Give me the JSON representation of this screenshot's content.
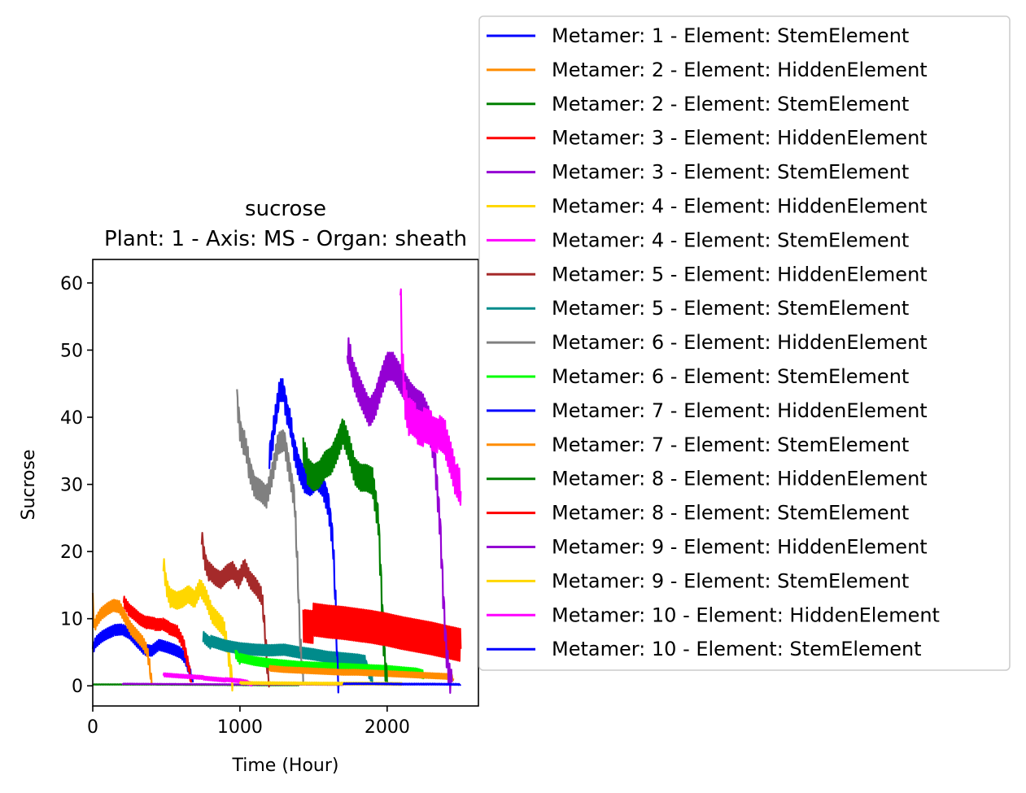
{
  "chart_data": {
    "type": "line",
    "title": "sucrose",
    "subtitle": "Plant: 1 - Axis: MS - Organ: sheath",
    "xlabel": "Time (Hour)",
    "ylabel": "Sucrose",
    "xlim": [
      0,
      2620
    ],
    "ylim": [
      -3,
      63.5
    ],
    "xticks": [
      0,
      1000,
      2000
    ],
    "yticks": [
      0,
      10,
      20,
      30,
      40,
      50,
      60
    ],
    "grid": false,
    "legend_position": "outside-right",
    "series": [
      {
        "name": "Metamer: 1 - Element: StemElement",
        "color": "#0000ff",
        "amp": 0.9,
        "x": [
          0,
          20,
          60,
          100,
          150,
          200,
          250,
          300,
          350,
          400,
          450,
          500,
          550,
          600,
          630,
          660,
          680
        ],
        "y": [
          5.5,
          6.5,
          7.3,
          7.8,
          8.3,
          8.4,
          7.8,
          6.6,
          5.4,
          5.2,
          6.1,
          5.8,
          5.4,
          4.9,
          4.0,
          2.0,
          0.5
        ]
      },
      {
        "name": "Metamer: 2 - Element: HiddenElement",
        "color": "#ff8c00",
        "amp": 1.0,
        "x": [
          0,
          10,
          30,
          60,
          100,
          140,
          180,
          220,
          260,
          300,
          340,
          370,
          385,
          400
        ],
        "y": [
          13,
          8.8,
          9.8,
          10.8,
          11.5,
          12.0,
          11.8,
          10.2,
          8.5,
          7.5,
          6.5,
          5.2,
          3.0,
          0.3
        ]
      },
      {
        "name": "Metamer: 2 - Element: StemElement",
        "color": "#008000",
        "amp": 0.05,
        "x": [
          0,
          400,
          800,
          1200,
          1400
        ],
        "y": [
          0.2,
          0.2,
          0.15,
          0.1,
          0.1
        ]
      },
      {
        "name": "Metamer: 3 - Element: HiddenElement",
        "color": "#ff0000",
        "amp": 1.0,
        "x": [
          210,
          240,
          280,
          320,
          370,
          420,
          470,
          520,
          570,
          620,
          650,
          670
        ],
        "y": [
          12.5,
          11.5,
          10.8,
          10.0,
          9.4,
          9.2,
          9.2,
          8.6,
          8.2,
          6.0,
          3.0,
          0.5
        ]
      },
      {
        "name": "Metamer: 3 - Element: StemElement",
        "color": "#9400d3",
        "amp": 0.05,
        "x": [
          200,
          600,
          1000,
          1400,
          1700
        ],
        "y": [
          0.3,
          0.25,
          0.2,
          0.2,
          0.15
        ]
      },
      {
        "name": "Metamer: 4 - Element: HiddenElement",
        "color": "#ffd700",
        "amp": 1.5,
        "x": [
          480,
          500,
          530,
          570,
          610,
          650,
          690,
          730,
          770,
          810,
          850,
          890,
          920,
          940,
          950
        ],
        "y": [
          18.5,
          15.0,
          13.0,
          12.5,
          12.8,
          13.5,
          12.7,
          14.5,
          13.0,
          10.5,
          9.5,
          8.5,
          5.0,
          2.0,
          0.4
        ]
      },
      {
        "name": "Metamer: 4 - Element: StemElement",
        "color": "#ff00ff",
        "amp": 0.3,
        "x": [
          480,
          600,
          750,
          900,
          1000,
          1050,
          1080
        ],
        "y": [
          1.6,
          1.4,
          1.2,
          0.9,
          0.7,
          0.5,
          0.3
        ]
      },
      {
        "name": "Metamer: 5 - Element: HiddenElement",
        "color": "#a52a2a",
        "amp": 1.5,
        "x": [
          740,
          760,
          790,
          830,
          870,
          910,
          950,
          990,
          1030,
          1070,
          1110,
          1150,
          1170,
          1185,
          1200
        ],
        "y": [
          22.5,
          19.0,
          17.0,
          16.0,
          15.5,
          16.5,
          17.0,
          15.5,
          17.5,
          15.5,
          14.5,
          13.0,
          8.0,
          3.0,
          0.5
        ]
      },
      {
        "name": "Metamer: 5 - Element: StemElement",
        "color": "#008b8b",
        "amp": 1.0,
        "x": [
          750,
          800,
          900,
          1000,
          1100,
          1200,
          1300,
          1400,
          1500,
          1600,
          1700,
          1800,
          1850,
          1880,
          1900
        ],
        "y": [
          7.5,
          6.5,
          5.8,
          5.4,
          5.2,
          5.1,
          5.2,
          4.8,
          4.5,
          4.1,
          3.9,
          3.7,
          3.5,
          2.0,
          0.5
        ]
      },
      {
        "name": "Metamer: 6 - Element: HiddenElement",
        "color": "#808080",
        "amp": 2.0,
        "x": [
          980,
          1000,
          1030,
          1060,
          1100,
          1140,
          1180,
          1220,
          1260,
          1300,
          1340,
          1370,
          1390,
          1410,
          1430
        ],
        "y": [
          43,
          38.5,
          36.0,
          33.0,
          30.0,
          29.5,
          28.5,
          32.0,
          36.5,
          37.0,
          32.0,
          28.0,
          18.0,
          6.0,
          0.5
        ]
      },
      {
        "name": "Metamer: 6 - Element: StemElement",
        "color": "#00ff00",
        "amp": 0.8,
        "x": [
          970,
          1000,
          1100,
          1200,
          1300,
          1400,
          1500,
          1600,
          1700,
          1800,
          1900,
          2000,
          2100,
          2200,
          2250
        ],
        "y": [
          5.0,
          4.0,
          3.5,
          3.2,
          3.0,
          2.8,
          2.7,
          2.6,
          2.5,
          2.4,
          2.3,
          2.2,
          2.0,
          1.8,
          1.5
        ]
      },
      {
        "name": "Metamer: 7 - Element: HiddenElement",
        "color": "#0000ff",
        "amp": 2.2,
        "x": [
          1200,
          1230,
          1270,
          1300,
          1330,
          1360,
          1400,
          1440,
          1480,
          1520,
          1560,
          1600,
          1630,
          1650,
          1660,
          1670
        ],
        "y": [
          34.5,
          38.0,
          43.5,
          43.5,
          40.0,
          36.5,
          33.0,
          31.0,
          30.5,
          31.5,
          30.5,
          27.5,
          22.0,
          12.0,
          4.0,
          0.5
        ]
      },
      {
        "name": "Metamer: 7 - Element: StemElement",
        "color": "#ff8c00",
        "amp": 0.5,
        "x": [
          1200,
          1300,
          1400,
          1500,
          1600,
          1700,
          1800,
          1900,
          2000,
          2100,
          2200,
          2300,
          2400,
          2450
        ],
        "y": [
          2.5,
          2.3,
          2.2,
          2.1,
          2.0,
          1.9,
          1.9,
          1.8,
          1.7,
          1.6,
          1.5,
          1.4,
          1.3,
          1.1
        ]
      },
      {
        "name": "Metamer: 8 - Element: HiddenElement",
        "color": "#008000",
        "amp": 2.5,
        "x": [
          1430,
          1460,
          1500,
          1540,
          1580,
          1620,
          1660,
          1700,
          1740,
          1780,
          1820,
          1860,
          1900,
          1940,
          1960,
          1980,
          2000
        ],
        "y": [
          34.5,
          32.5,
          31.5,
          32.0,
          33.5,
          34.0,
          36.0,
          38.5,
          36.0,
          32.5,
          31.5,
          31.5,
          31.0,
          25.0,
          15.0,
          5.0,
          0.5
        ]
      },
      {
        "name": "Metamer: 8 - Element: StemElement",
        "color": "#ff0000",
        "amp": 3.0,
        "x": [
          1430,
          1500,
          1600,
          1700,
          1800,
          1900,
          2000,
          2100,
          2200,
          2300,
          2400,
          2500
        ],
        "y": [
          9.5,
          9.3,
          9.0,
          8.8,
          8.5,
          8.2,
          7.8,
          7.3,
          6.9,
          6.5,
          6.0,
          5.5
        ]
      },
      {
        "name": "Metamer: 9 - Element: HiddenElement",
        "color": "#9400d3",
        "amp": 2.5,
        "x": [
          1730,
          1760,
          1800,
          1840,
          1880,
          1920,
          1960,
          2000,
          2040,
          2080,
          2120,
          2160,
          2200,
          2240,
          2280,
          2320,
          2360,
          2380,
          2400,
          2420,
          2440
        ],
        "y": [
          50.0,
          47.5,
          45.0,
          43.0,
          41.0,
          42.5,
          45.5,
          48.0,
          48.0,
          46.5,
          45.0,
          43.5,
          42.5,
          42.0,
          40.0,
          35.0,
          24.0,
          14.0,
          6.0,
          2.0,
          0.5
        ]
      },
      {
        "name": "Metamer: 9 - Element: StemElement",
        "color": "#ffd700",
        "amp": 0.2,
        "x": [
          1000,
          1300,
          1600,
          1900,
          2100
        ],
        "y": [
          0.4,
          0.35,
          0.3,
          0.3,
          0.25
        ]
      },
      {
        "name": "Metamer: 10 - Element: HiddenElement",
        "color": "#ff00ff",
        "amp": 3.0,
        "x": [
          2090,
          2100,
          2120,
          2150,
          2200,
          2250,
          2300,
          2350,
          2400,
          2440,
          2470,
          2500
        ],
        "y": [
          60.3,
          50.0,
          43.0,
          40.0,
          39.0,
          38.5,
          38.0,
          37.5,
          36.5,
          33.5,
          30.5,
          29.0
        ]
      },
      {
        "name": "Metamer: 10 - Element: StemElement",
        "color": "#0000ff",
        "amp": 0.1,
        "x": [
          1700,
          1900,
          2100,
          2300,
          2500
        ],
        "y": [
          0.3,
          0.3,
          0.25,
          0.25,
          0.2
        ]
      }
    ]
  }
}
